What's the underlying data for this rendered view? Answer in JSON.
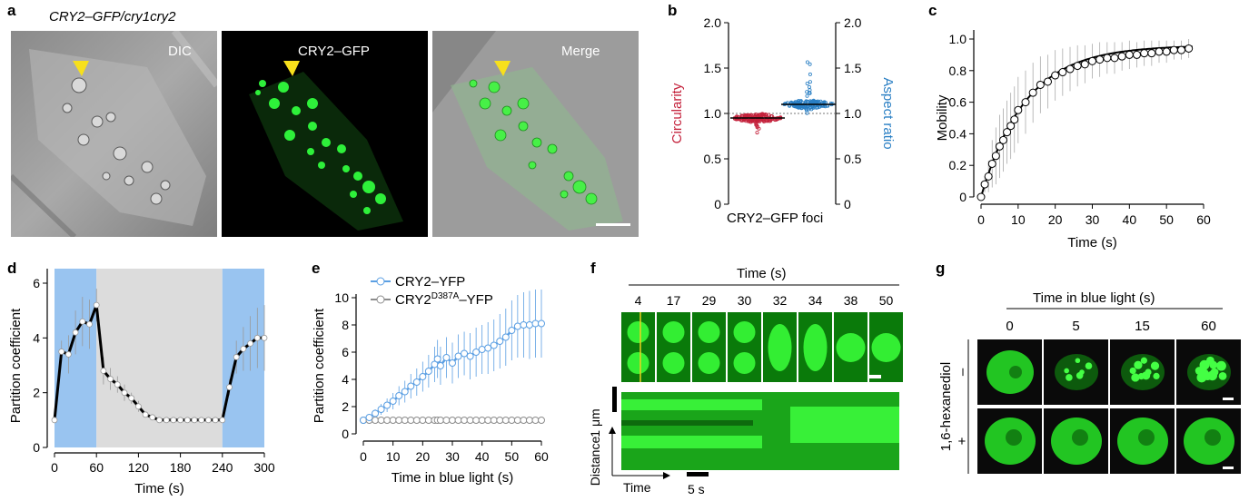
{
  "figure": {
    "panel_a": {
      "letter": "a",
      "genotype": "CRY2–GFP/cry1cry2",
      "channels": [
        "DIC",
        "CRY2–GFP",
        "Merge"
      ]
    },
    "panel_b": {
      "letter": "b",
      "left_ylabel": "Circularity",
      "right_ylabel": "Aspect ratio",
      "xlabel": "CRY2–GFP foci",
      "left_ticks": [
        "0",
        "0.5",
        "1.0",
        "1.5",
        "2.0"
      ],
      "right_ticks": [
        "0",
        "0.5",
        "1.0",
        "1.5",
        "2.0"
      ],
      "colors": {
        "circularity": "#c4213b",
        "aspect_ratio": "#2a7fc4"
      }
    },
    "panel_c": {
      "letter": "c",
      "ylabel": "Mobility",
      "xlabel": "Time (s)",
      "xticks": [
        "0",
        "10",
        "20",
        "30",
        "40",
        "50",
        "60"
      ],
      "yticks": [
        "0",
        "0.2",
        "0.4",
        "0.6",
        "0.8",
        "1.0"
      ]
    },
    "panel_d": {
      "letter": "d",
      "ylabel": "Partition coefficient",
      "xlabel": "Time (s)",
      "xticks": [
        "0",
        "60",
        "120",
        "180",
        "240",
        "300"
      ],
      "yticks": [
        "0",
        "2",
        "4",
        "6"
      ],
      "colors": {
        "blue_light": "#99c4f0",
        "dark": "#dcdcdc"
      }
    },
    "panel_e": {
      "letter": "e",
      "ylabel": "Partition coefficient",
      "xlabel": "Time in blue light (s)",
      "xticks": [
        "0",
        "10",
        "20",
        "30",
        "40",
        "50",
        "60"
      ],
      "yticks": [
        "0",
        "2",
        "4",
        "6",
        "8",
        "10"
      ],
      "legend": [
        {
          "label": "CRY2–YFP",
          "color": "#5b9fe3"
        },
        {
          "label_main": "CRY2",
          "label_sup": "D387A",
          "label_end": "–YFP",
          "color": "#8c8c8c"
        }
      ]
    },
    "panel_f": {
      "letter": "f",
      "header": "Time (s)",
      "times": [
        "4",
        "17",
        "29",
        "30",
        "32",
        "34",
        "38",
        "50"
      ],
      "scale_label": "1 μm",
      "ylabel": "Distance",
      "xlabel": "Time",
      "time_scale": "5 s"
    },
    "panel_g": {
      "letter": "g",
      "header": "Time in blue light (s)",
      "times": [
        "0",
        "5",
        "15",
        "60"
      ],
      "treatment": "1,6-hexanediol",
      "rows": [
        "–",
        "+"
      ]
    }
  },
  "chart_data": [
    {
      "type": "scatter",
      "panel": "b",
      "categories": [
        "Circularity",
        "Aspect ratio"
      ],
      "series": [
        {
          "name": "Circularity",
          "center": 0.95,
          "range": [
            0.78,
            1.0
          ]
        },
        {
          "name": "Aspect ratio",
          "center": 1.1,
          "range": [
            1.0,
            1.62
          ]
        }
      ],
      "ylim": [
        0,
        2.0
      ],
      "reference_line": 1.0
    },
    {
      "type": "scatter",
      "panel": "c",
      "x": [
        0,
        1,
        2,
        3,
        4,
        5,
        6,
        7,
        8,
        9,
        10,
        12,
        14,
        16,
        18,
        20,
        22,
        24,
        26,
        28,
        30,
        32,
        34,
        36,
        38,
        40,
        42,
        44,
        46,
        48,
        50,
        52,
        54,
        56
      ],
      "y": [
        0.0,
        0.08,
        0.13,
        0.21,
        0.26,
        0.32,
        0.36,
        0.41,
        0.45,
        0.49,
        0.55,
        0.6,
        0.66,
        0.71,
        0.73,
        0.77,
        0.79,
        0.81,
        0.83,
        0.84,
        0.86,
        0.87,
        0.88,
        0.88,
        0.89,
        0.9,
        0.9,
        0.91,
        0.91,
        0.92,
        0.92,
        0.93,
        0.93,
        0.94
      ],
      "error": [
        0.0,
        0.05,
        0.1,
        0.15,
        0.18,
        0.2,
        0.2,
        0.2,
        0.21,
        0.21,
        0.21,
        0.2,
        0.19,
        0.18,
        0.17,
        0.16,
        0.15,
        0.14,
        0.13,
        0.12,
        0.11,
        0.11,
        0.1,
        0.1,
        0.09,
        0.09,
        0.08,
        0.08,
        0.08,
        0.07,
        0.07,
        0.06,
        0.06,
        0.06
      ],
      "fit": "1 - exp(-t/12)",
      "xlim": [
        0,
        60
      ],
      "ylim": [
        0,
        1.0
      ]
    },
    {
      "type": "line",
      "panel": "d",
      "x": [
        0,
        10,
        20,
        30,
        40,
        50,
        60,
        70,
        80,
        90,
        100,
        110,
        120,
        130,
        140,
        150,
        160,
        170,
        180,
        190,
        200,
        210,
        220,
        230,
        240,
        250,
        260,
        270,
        280,
        290,
        300
      ],
      "y": [
        1.0,
        3.5,
        3.4,
        4.2,
        4.6,
        4.5,
        5.2,
        2.8,
        2.5,
        2.3,
        2.0,
        1.8,
        1.5,
        1.2,
        1.1,
        1.0,
        1.0,
        1.0,
        1.0,
        1.0,
        1.0,
        1.0,
        1.0,
        1.0,
        1.0,
        2.2,
        3.3,
        3.6,
        3.8,
        4.0,
        4.0
      ],
      "error": [
        0,
        0.4,
        0.7,
        0.8,
        0.9,
        0.9,
        0.6,
        0.5,
        0.4,
        0.3,
        0.3,
        0.2,
        0.2,
        0.1,
        0.1,
        0.1,
        0.05,
        0.05,
        0.05,
        0.05,
        0.05,
        0.05,
        0.05,
        0.05,
        0.05,
        0.3,
        0.6,
        0.8,
        1.0,
        1.1,
        1.2
      ],
      "shaded_regions": [
        {
          "x": [
            0,
            60
          ],
          "label": "blue"
        },
        {
          "x": [
            60,
            240
          ],
          "label": "grey"
        },
        {
          "x": [
            240,
            300
          ],
          "label": "blue"
        }
      ],
      "xlim": [
        0,
        300
      ],
      "ylim": [
        0,
        6
      ]
    },
    {
      "type": "line",
      "panel": "e",
      "x": [
        0,
        2,
        4,
        6,
        8,
        10,
        12,
        14,
        16,
        18,
        20,
        22,
        24,
        25,
        26,
        28,
        30,
        32,
        34,
        36,
        38,
        40,
        42,
        44,
        46,
        48,
        50,
        52,
        54,
        56,
        58,
        60
      ],
      "series": [
        {
          "name": "CRY2–YFP",
          "values": [
            1.0,
            1.2,
            1.5,
            1.8,
            2.1,
            2.4,
            2.8,
            3.1,
            3.5,
            3.8,
            4.2,
            4.6,
            5.1,
            5.5,
            5.0,
            5.6,
            5.2,
            5.7,
            5.9,
            5.7,
            6.0,
            6.2,
            6.3,
            6.5,
            6.8,
            7.1,
            7.6,
            7.9,
            8.0,
            8.0,
            8.1,
            8.1
          ],
          "error": [
            0.1,
            0.2,
            0.3,
            0.4,
            0.5,
            0.6,
            0.7,
            0.8,
            0.9,
            1.0,
            1.1,
            1.2,
            1.3,
            1.4,
            1.4,
            1.5,
            1.5,
            1.6,
            1.6,
            1.7,
            1.8,
            1.8,
            1.9,
            1.9,
            2.0,
            2.1,
            2.2,
            2.3,
            2.4,
            2.5,
            2.5,
            2.5
          ]
        },
        {
          "name": "CRY2D387A–YFP",
          "values": [
            1,
            1,
            1,
            1,
            1,
            1,
            1,
            1,
            1,
            1,
            1,
            1,
            1,
            1,
            1,
            1,
            1,
            1,
            1,
            1,
            1,
            1,
            1,
            1,
            1,
            1,
            1,
            1,
            1,
            1,
            1,
            1
          ]
        }
      ],
      "xlim": [
        0,
        60
      ],
      "ylim": [
        0,
        10
      ]
    }
  ]
}
